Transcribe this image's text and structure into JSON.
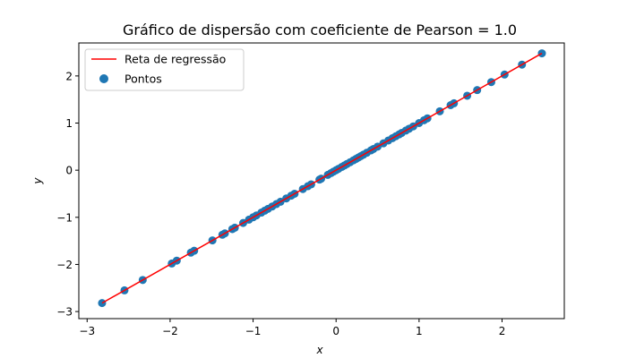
{
  "chart_data": {
    "type": "scatter",
    "title": "Gráfico de dispersão com coeficiente de Pearson = 1.0",
    "xlabel": "x",
    "ylabel": "y",
    "xlim": [
      -3.1,
      2.75
    ],
    "ylim": [
      -3.15,
      2.7
    ],
    "xticks": [
      -3,
      -2,
      -1,
      0,
      1,
      2
    ],
    "yticks": [
      -3,
      -2,
      -1,
      0,
      1,
      2
    ],
    "xtick_labels": [
      "−3",
      "−2",
      "−1",
      "0",
      "1",
      "2"
    ],
    "ytick_labels": [
      "−3",
      "−2",
      "−1",
      "0",
      "1",
      "2"
    ],
    "grid": false,
    "legend_position": "top-left",
    "series": [
      {
        "name": "Pontos",
        "kind": "scatter",
        "color": "#1f77b4",
        "x": [
          -2.82,
          -2.55,
          -2.33,
          -1.98,
          -1.92,
          -1.75,
          -1.71,
          -1.49,
          -1.37,
          -1.34,
          -1.25,
          -1.22,
          -1.12,
          -1.05,
          -1.0,
          -0.96,
          -0.9,
          -0.86,
          -0.82,
          -0.77,
          -0.72,
          -0.67,
          -0.6,
          -0.54,
          -0.5,
          -0.4,
          -0.34,
          -0.3,
          -0.2,
          -0.18,
          -0.1,
          -0.06,
          -0.03,
          0.0,
          0.03,
          0.07,
          0.1,
          0.13,
          0.17,
          0.21,
          0.24,
          0.27,
          0.3,
          0.33,
          0.37,
          0.42,
          0.45,
          0.5,
          0.57,
          0.63,
          0.68,
          0.72,
          0.76,
          0.79,
          0.84,
          0.88,
          0.93,
          1.0,
          1.06,
          1.1,
          1.25,
          1.38,
          1.42,
          1.58,
          1.7,
          1.87,
          2.03,
          2.24,
          2.48
        ],
        "y": [
          -2.82,
          -2.55,
          -2.33,
          -1.98,
          -1.92,
          -1.75,
          -1.71,
          -1.49,
          -1.37,
          -1.34,
          -1.25,
          -1.22,
          -1.12,
          -1.05,
          -1.0,
          -0.96,
          -0.9,
          -0.86,
          -0.82,
          -0.77,
          -0.72,
          -0.67,
          -0.6,
          -0.54,
          -0.5,
          -0.4,
          -0.34,
          -0.3,
          -0.2,
          -0.18,
          -0.1,
          -0.06,
          -0.03,
          0.0,
          0.03,
          0.07,
          0.1,
          0.13,
          0.17,
          0.21,
          0.24,
          0.27,
          0.3,
          0.33,
          0.37,
          0.42,
          0.45,
          0.5,
          0.57,
          0.63,
          0.68,
          0.72,
          0.76,
          0.79,
          0.84,
          0.88,
          0.93,
          1.0,
          1.06,
          1.1,
          1.25,
          1.38,
          1.42,
          1.58,
          1.7,
          1.87,
          2.03,
          2.24,
          2.48
        ]
      },
      {
        "name": "Reta de regressão",
        "kind": "line",
        "color": "#ff0000",
        "x": [
          -2.82,
          2.48
        ],
        "y": [
          -2.82,
          2.48
        ]
      }
    ]
  }
}
